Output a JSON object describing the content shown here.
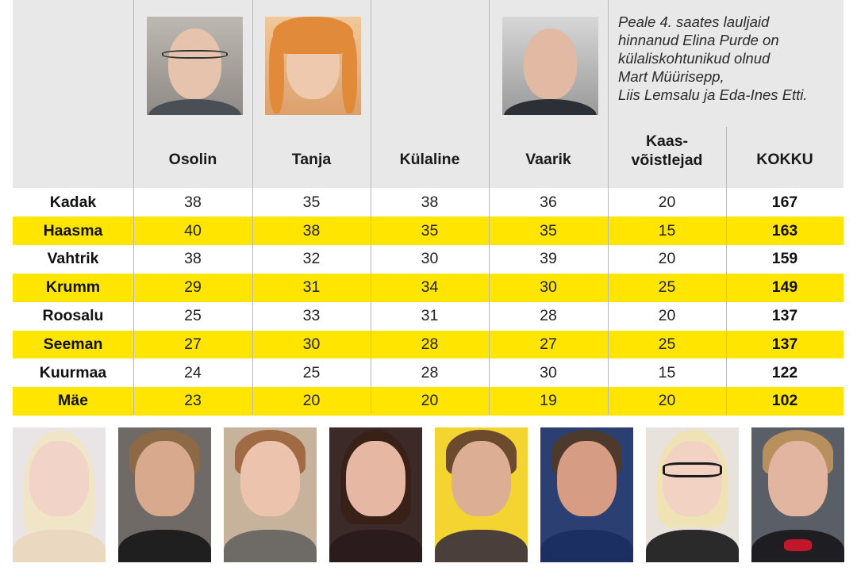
{
  "note_lines": [
    "Peale 4. saates lauljaid",
    "hinnanud Elina Purde on",
    "külaliskohtunikud olnud",
    "Mart Müürisepp,",
    "Liis Lemsalu ja Eda-Ines Etti."
  ],
  "columns": [
    {
      "label": "Osolin",
      "photo": "judge-osolin-portrait"
    },
    {
      "label": "Tanja",
      "photo": "judge-tanja-portrait"
    },
    {
      "label": "Külaline",
      "photo": ""
    },
    {
      "label": "Vaarik",
      "photo": "judge-vaarik-portrait"
    },
    {
      "label_lines": [
        "Kaas-",
        "võistlejad"
      ]
    },
    {
      "label": "KOKKU"
    }
  ],
  "rows": [
    {
      "name": "Kadak",
      "scores": [
        "38",
        "35",
        "38",
        "36",
        "20"
      ],
      "total": "167",
      "highlight": false
    },
    {
      "name": "Haasma",
      "scores": [
        "40",
        "38",
        "35",
        "35",
        "15"
      ],
      "total": "163",
      "highlight": true
    },
    {
      "name": "Vahtrik",
      "scores": [
        "38",
        "32",
        "30",
        "39",
        "20"
      ],
      "total": "159",
      "highlight": false
    },
    {
      "name": "Krumm",
      "scores": [
        "29",
        "31",
        "34",
        "30",
        "25"
      ],
      "total": "149",
      "highlight": true
    },
    {
      "name": "Roosalu",
      "scores": [
        "25",
        "33",
        "31",
        "28",
        "20"
      ],
      "total": "137",
      "highlight": false
    },
    {
      "name": "Seeman",
      "scores": [
        "27",
        "30",
        "28",
        "27",
        "25"
      ],
      "total": "137",
      "highlight": true
    },
    {
      "name": "Kuurmaa",
      "scores": [
        "24",
        "25",
        "28",
        "30",
        "15"
      ],
      "total": "122",
      "highlight": false
    },
    {
      "name": "Mäe",
      "scores": [
        "23",
        "20",
        "20",
        "19",
        "20"
      ],
      "total": "102",
      "highlight": true
    }
  ],
  "colors": {
    "header_bg": "#e8e8e8",
    "highlight": "#ffe500",
    "divider": "#b9b9b9"
  },
  "contestant_photos": [
    "contestant-photo-1",
    "contestant-photo-2",
    "contestant-photo-3",
    "contestant-photo-4",
    "contestant-photo-5",
    "contestant-photo-6",
    "contestant-photo-7",
    "contestant-photo-8"
  ]
}
